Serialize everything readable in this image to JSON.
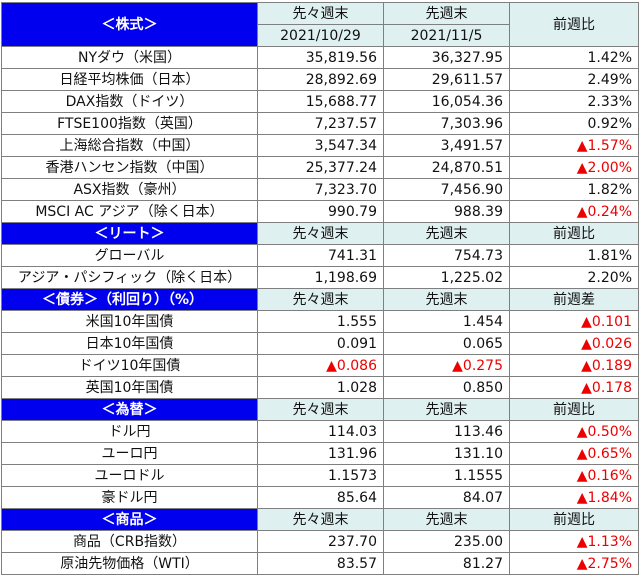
{
  "header": {
    "stocks_title": "＜株式＞",
    "col_prev2": "先々週末",
    "col_prev": "先週末",
    "date_prev2": "2021/10/29",
    "date_prev": "2021/11/5",
    "col_change": "前週比"
  },
  "stocks": [
    {
      "name": "NYダウ（米国）",
      "a": "35,819.56",
      "b": "36,327.95",
      "c": "1.42%",
      "neg": false
    },
    {
      "name": "日経平均株価（日本）",
      "a": "28,892.69",
      "b": "29,611.57",
      "c": "2.49%",
      "neg": false
    },
    {
      "name": "DAX指数（ドイツ）",
      "a": "15,688.77",
      "b": "16,054.36",
      "c": "2.33%",
      "neg": false
    },
    {
      "name": "FTSE100指数（英国）",
      "a": "7,237.57",
      "b": "7,303.96",
      "c": "0.92%",
      "neg": false
    },
    {
      "name": "上海総合指数（中国）",
      "a": "3,547.34",
      "b": "3,491.57",
      "c": "▲1.57%",
      "neg": true
    },
    {
      "name": "香港ハンセン指数（中国）",
      "a": "25,377.24",
      "b": "24,870.51",
      "c": "▲2.00%",
      "neg": true
    },
    {
      "name": "ASX指数（豪州）",
      "a": "7,323.70",
      "b": "7,456.90",
      "c": "1.82%",
      "neg": false
    },
    {
      "name": "MSCI AC アジア（除く日本）",
      "a": "990.79",
      "b": "988.39",
      "c": "▲0.24%",
      "neg": true
    }
  ],
  "reit": {
    "title": "＜リート＞",
    "h1": "先々週末",
    "h2": "先週末",
    "h3": "前週比",
    "rows": [
      {
        "name": "グローバル",
        "a": "741.31",
        "b": "754.73",
        "c": "1.81%",
        "neg": false
      },
      {
        "name": "アジア・パシフィック（除く日本）",
        "a": "1,198.69",
        "b": "1,225.02",
        "c": "2.20%",
        "neg": false
      }
    ]
  },
  "bonds": {
    "title": "＜債券＞（利回り）（%）",
    "h1": "先々週末",
    "h2": "先週末",
    "h3": "前週差",
    "rows": [
      {
        "name": "米国10年国債",
        "a": "1.555",
        "an": false,
        "b": "1.454",
        "bn": false,
        "c": "▲0.101",
        "neg": true
      },
      {
        "name": "日本10年国債",
        "a": "0.091",
        "an": false,
        "b": "0.065",
        "bn": false,
        "c": "▲0.026",
        "neg": true
      },
      {
        "name": "ドイツ10年国債",
        "a": "▲0.086",
        "an": true,
        "b": "▲0.275",
        "bn": true,
        "c": "▲0.189",
        "neg": true
      },
      {
        "name": "英国10年国債",
        "a": "1.028",
        "an": false,
        "b": "0.850",
        "bn": false,
        "c": "▲0.178",
        "neg": true
      }
    ]
  },
  "fx": {
    "title": "＜為替＞",
    "h1": "先々週末",
    "h2": "先週末",
    "h3": "前週比",
    "rows": [
      {
        "name": "ドル円",
        "a": "114.03",
        "b": "113.46",
        "c": "▲0.50%",
        "neg": true
      },
      {
        "name": "ユーロ円",
        "a": "131.96",
        "b": "131.10",
        "c": "▲0.65%",
        "neg": true
      },
      {
        "name": "ユーロドル",
        "a": "1.1573",
        "b": "1.1555",
        "c": "▲0.16%",
        "neg": true
      },
      {
        "name": "豪ドル円",
        "a": "85.64",
        "b": "84.07",
        "c": "▲1.84%",
        "neg": true
      }
    ]
  },
  "commodities": {
    "title": "＜商品＞",
    "h1": "先々週末",
    "h2": "先週末",
    "h3": "前週比",
    "rows": [
      {
        "name": "商品（CRB指数）",
        "a": "237.70",
        "b": "235.00",
        "c": "▲1.13%",
        "neg": true
      },
      {
        "name": "原油先物価格（WTI）",
        "a": "83.57",
        "b": "81.27",
        "c": "▲2.75%",
        "neg": true
      }
    ]
  }
}
